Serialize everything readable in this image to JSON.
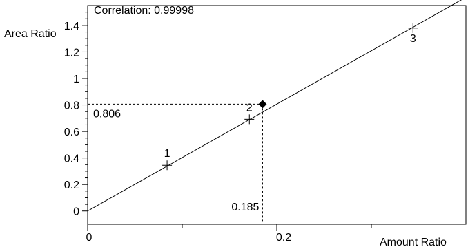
{
  "chart_data": {
    "type": "scatter",
    "title": "Correlation: 0.99998",
    "xlabel": "Amount Ratio",
    "ylabel": "Area Ratio",
    "xlim": [
      0,
      0.4
    ],
    "ylim": [
      -0.1,
      1.55
    ],
    "x_ticks": [
      "0",
      "0.2"
    ],
    "y_ticks": [
      "0",
      "0.2",
      "0.4",
      "0.6",
      "0.8",
      "1",
      "1.2",
      "1.4"
    ],
    "points": [
      {
        "label": "1",
        "x": 0.084,
        "y": 0.345
      },
      {
        "label": "2",
        "x": 0.171,
        "y": 0.692
      },
      {
        "label": "3",
        "x": 0.344,
        "y": 1.38
      }
    ],
    "fit_line": {
      "slope": 4.03,
      "intercept": 0.0
    },
    "unknown": {
      "x": 0.185,
      "y": 0.806,
      "x_label": "0.185",
      "y_label": "0.806"
    },
    "grid": false
  }
}
